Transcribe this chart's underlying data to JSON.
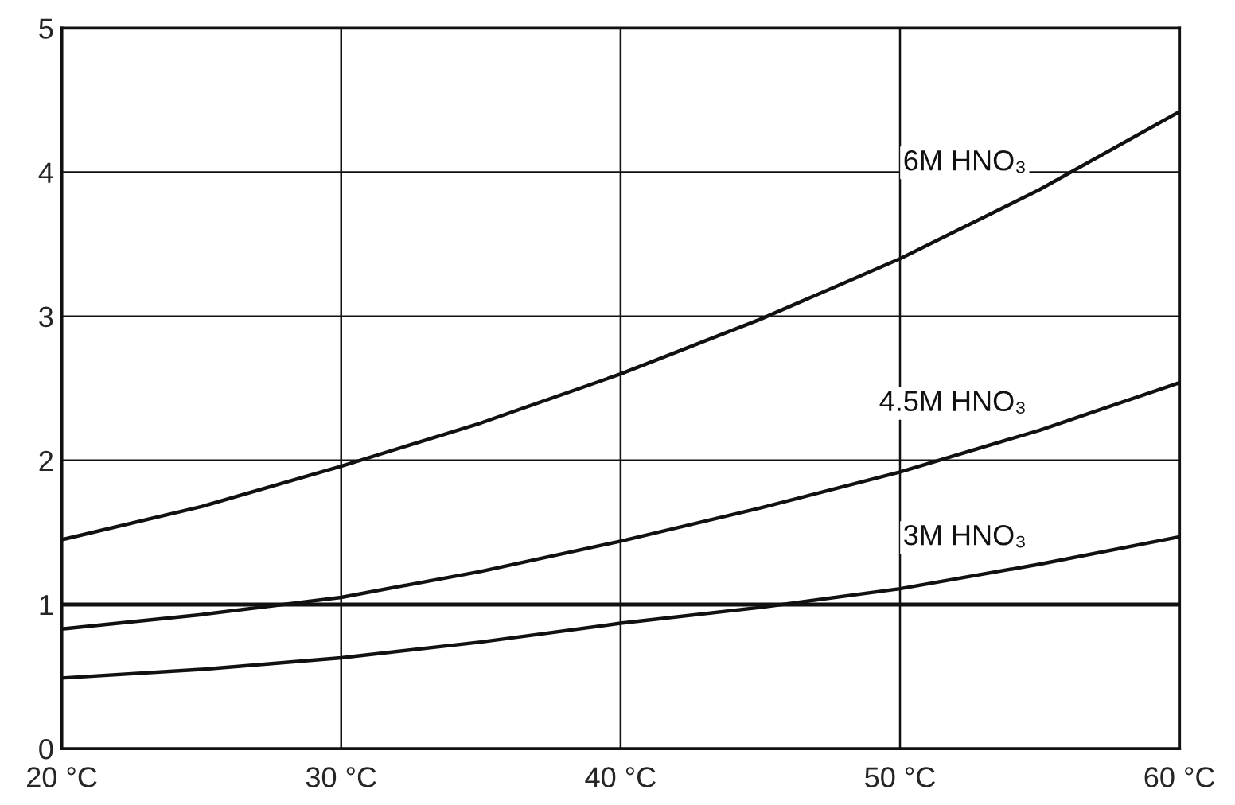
{
  "chart_data": {
    "type": "line",
    "x": [
      20,
      25,
      30,
      35,
      40,
      45,
      50,
      55,
      60
    ],
    "series": [
      {
        "name": "6M HNO₃",
        "color": "#111111",
        "values": [
          1.45,
          1.68,
          1.96,
          2.26,
          2.6,
          2.98,
          3.4,
          3.88,
          4.42
        ]
      },
      {
        "name": "4.5M HNO₃",
        "color": "#111111",
        "values": [
          0.83,
          0.93,
          1.05,
          1.23,
          1.44,
          1.67,
          1.92,
          2.21,
          2.54
        ]
      },
      {
        "name": "3M HNO₃",
        "color": "#111111",
        "values": [
          0.49,
          0.55,
          0.63,
          0.74,
          0.87,
          0.98,
          1.11,
          1.28,
          1.47
        ]
      }
    ],
    "ref_lines": [
      {
        "axis": "y",
        "value": 1,
        "color": "#111111"
      }
    ],
    "xlim": [
      20,
      60
    ],
    "xticks": [
      {
        "value": 20,
        "label": "20 °C"
      },
      {
        "value": 30,
        "label": "30 °C"
      },
      {
        "value": 40,
        "label": "40 °C"
      },
      {
        "value": 50,
        "label": "50 °C"
      },
      {
        "value": 60,
        "label": "60 °C"
      }
    ],
    "ylim": [
      0,
      5
    ],
    "yticks": [
      0,
      1,
      2,
      3,
      4,
      5
    ],
    "grid": true,
    "legend": false,
    "marker": "none",
    "line_style": "solid"
  }
}
